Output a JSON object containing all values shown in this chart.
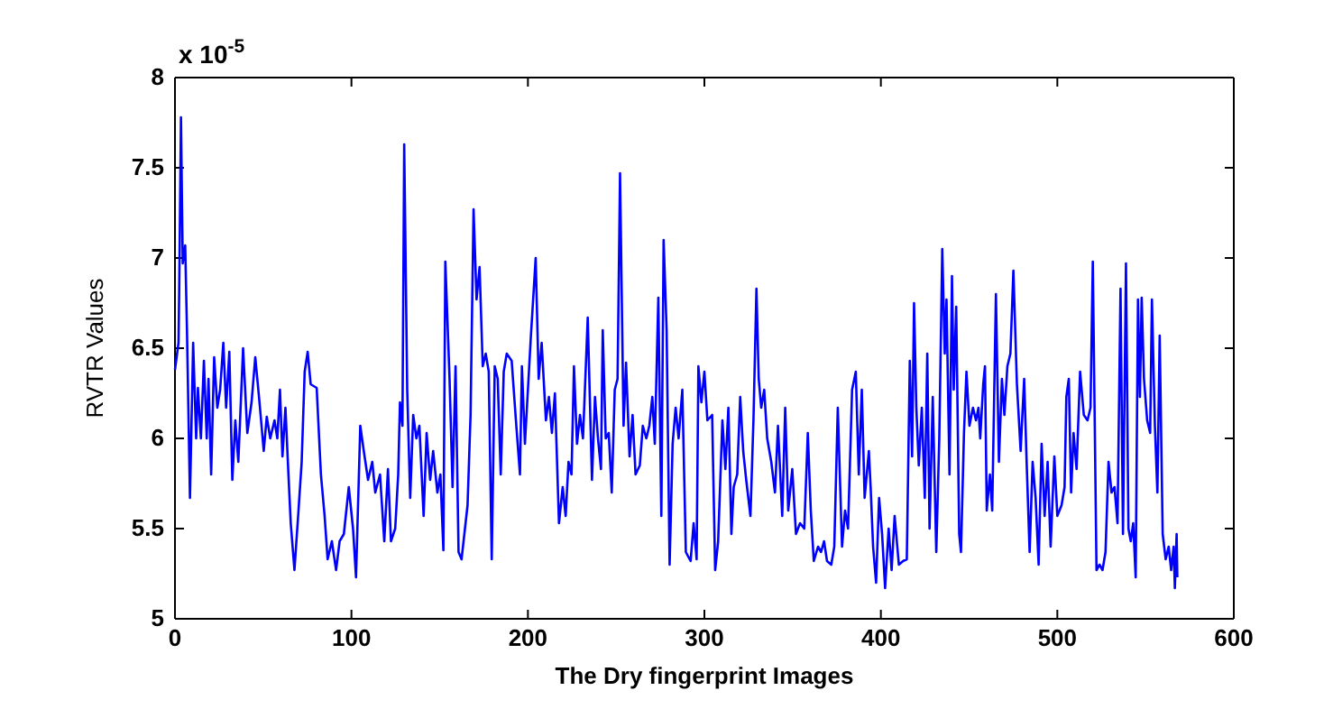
{
  "chart_data": {
    "type": "line",
    "xlabel": "The Dry fingerprint Images",
    "ylabel": "RVTR Values",
    "annotations": [
      "x 10$^{-5}$"
    ],
    "xlim": [
      0,
      600
    ],
    "ylim": [
      5,
      8
    ],
    "xticks": [
      0,
      100,
      200,
      300,
      400,
      500,
      600
    ],
    "yticks": [
      5,
      5.5,
      6,
      6.5,
      7,
      7.5,
      8
    ],
    "series": [
      {
        "color": "#0000ff",
        "x": [
          0,
          2,
          2.4,
          3.4,
          4.4,
          5.8,
          6.8,
          8.5,
          10.3,
          12,
          13,
          14.7,
          16.4,
          18,
          19,
          20.5,
          22.2,
          24,
          25.6,
          27.4,
          29,
          30.8,
          32.5,
          34.2,
          35.9,
          38.6,
          41,
          43.4,
          45.5,
          47.9,
          50.3,
          52,
          54,
          56.4,
          58,
          59.5,
          60.9,
          62.6,
          64.3,
          65.6,
          67.7,
          70,
          71.8,
          73.5,
          75.2,
          76.9,
          80.3,
          82.7,
          84.8,
          86.5,
          88.9,
          91.3,
          93.3,
          95.7,
          98.5,
          100.9,
          102.6,
          105,
          107,
          109.4,
          111.8,
          113.5,
          116.2,
          118.6,
          120.7,
          122.4,
          124.8,
          126.5,
          127.5,
          128.9,
          129.9,
          131.6,
          133.3,
          135,
          136.8,
          138.5,
          140.9,
          142.6,
          144.6,
          146.3,
          148.7,
          150.4,
          152.1,
          153.2,
          155.6,
          157.3,
          159,
          160.7,
          162.4,
          165.8,
          167.5,
          169.2,
          170.9,
          172.6,
          174.4,
          176.1,
          177.8,
          179.5,
          181.2,
          182.9,
          184.6,
          186.3,
          188,
          190.8,
          193.2,
          195.5,
          196.6,
          198.3,
          201.7,
          204.4,
          206.1,
          207.8,
          210.2,
          211.9,
          213.6,
          215.3,
          217.6,
          219.7,
          221.4,
          223,
          224.7,
          226.1,
          227.8,
          229.5,
          231.2,
          233.9,
          236.3,
          238,
          239.7,
          241.4,
          242.4,
          244.1,
          245.8,
          247.5,
          249.2,
          250.8,
          252.2,
          254.2,
          255.6,
          257.6,
          259.3,
          261,
          263.4,
          265.1,
          267.1,
          268.8,
          270.5,
          271.9,
          273.9,
          275.6,
          276.9,
          278.6,
          280.3,
          282,
          283.7,
          285.4,
          287.5,
          289.5,
          292.2,
          293.9,
          295.6,
          296.6,
          298.3,
          300,
          301.7,
          304.4,
          306.1,
          307.8,
          310.2,
          311.9,
          313.6,
          315.3,
          316.6,
          318.6,
          320.3,
          322,
          323.7,
          326.1,
          327.8,
          329.5,
          330.8,
          332.2,
          333.9,
          335.6,
          337.9,
          340,
          341.7,
          344.1,
          345.8,
          347.5,
          349.8,
          351.9,
          354.2,
          356.6,
          358.6,
          360.3,
          362,
          364.4,
          366.1,
          367.8,
          369.5,
          371.9,
          373.6,
          375.6,
          378,
          379.7,
          381.4,
          383.7,
          385.8,
          387.5,
          389.2,
          390.8,
          393.2,
          394.2,
          395.6,
          397.3,
          399,
          400.7,
          402.4,
          404.4,
          406.1,
          407.8,
          410.2,
          412.6,
          414.7,
          416.4,
          417.7,
          418.8,
          420.1,
          421.5,
          423.2,
          424.9,
          426.3,
          427.6,
          429.4,
          431.4,
          433.1,
          434.8,
          436.2,
          437.2,
          438.9,
          440.3,
          441.3,
          442.7,
          444.4,
          445.4,
          447.1,
          448.5,
          450.2,
          452.2,
          453.9,
          455.3,
          456.3,
          458,
          459,
          460,
          461.8,
          463.1,
          464.2,
          465.2,
          466.9,
          468.6,
          470,
          471.7,
          473.4,
          475.1,
          477.1,
          479.2,
          481.2,
          482.6,
          484.3,
          486,
          487.7,
          489.4,
          491.1,
          492.8,
          494.5,
          496.2,
          498.3,
          500,
          502.4,
          504.1,
          505.1,
          506.5,
          507.8,
          509.2,
          510.9,
          512.9,
          515,
          517.1,
          518.8,
          520.1,
          522.2,
          523.9,
          525.6,
          527.3,
          529,
          530.7,
          532.4,
          534.1,
          535.8,
          537.2,
          538.9,
          540.3,
          541.6,
          543,
          544.4,
          545.7,
          546.8,
          547.8,
          549.1,
          550.9,
          552.6,
          553.6,
          555.3,
          556.7,
          558,
          559.7,
          561.4,
          563.1,
          564.5,
          565.9,
          566.6,
          567.6,
          568
        ],
        "values": [
          6.38,
          6.53,
          6.82,
          7.78,
          6.97,
          7.07,
          6.6,
          5.67,
          6.53,
          6.0,
          6.28,
          6.0,
          6.43,
          6.0,
          6.33,
          5.8,
          6.45,
          6.17,
          6.27,
          6.53,
          6.17,
          6.48,
          5.77,
          6.1,
          5.87,
          6.5,
          6.03,
          6.2,
          6.45,
          6.2,
          5.93,
          6.12,
          6.0,
          6.1,
          6.0,
          6.27,
          5.9,
          6.17,
          5.8,
          5.53,
          5.27,
          5.6,
          5.87,
          6.37,
          6.48,
          6.3,
          6.28,
          5.8,
          5.57,
          5.33,
          5.43,
          5.27,
          5.43,
          5.47,
          5.73,
          5.5,
          5.23,
          6.07,
          5.93,
          5.77,
          5.87,
          5.7,
          5.8,
          5.43,
          5.83,
          5.43,
          5.5,
          5.8,
          6.2,
          6.07,
          7.63,
          6.27,
          5.67,
          6.13,
          6.0,
          6.07,
          5.57,
          6.03,
          5.77,
          5.93,
          5.7,
          5.8,
          5.38,
          6.98,
          6.33,
          5.73,
          6.4,
          5.37,
          5.33,
          5.63,
          6.13,
          7.27,
          6.77,
          6.95,
          6.4,
          6.47,
          6.37,
          5.33,
          6.4,
          6.33,
          5.8,
          6.37,
          6.47,
          6.43,
          6.1,
          5.8,
          6.4,
          5.97,
          6.57,
          7.0,
          6.33,
          6.53,
          6.1,
          6.23,
          6.03,
          6.25,
          5.53,
          5.73,
          5.57,
          5.87,
          5.8,
          6.4,
          5.97,
          6.13,
          6.0,
          6.67,
          5.77,
          6.23,
          6.0,
          5.83,
          6.6,
          6.0,
          6.03,
          5.7,
          6.27,
          6.33,
          7.47,
          6.07,
          6.42,
          5.9,
          6.13,
          5.8,
          5.85,
          6.07,
          6.0,
          6.07,
          6.23,
          5.97,
          6.78,
          5.57,
          7.1,
          6.6,
          5.3,
          5.97,
          6.17,
          6.0,
          6.27,
          5.37,
          5.32,
          5.53,
          5.33,
          6.4,
          6.2,
          6.37,
          6.1,
          6.13,
          5.27,
          5.43,
          6.1,
          5.83,
          6.17,
          5.47,
          5.73,
          5.8,
          6.23,
          5.93,
          5.77,
          5.57,
          6.1,
          6.83,
          6.33,
          6.17,
          6.27,
          6.0,
          5.87,
          5.7,
          6.07,
          5.57,
          6.17,
          5.6,
          5.83,
          5.47,
          5.53,
          5.5,
          6.03,
          5.6,
          5.32,
          5.4,
          5.37,
          5.43,
          5.32,
          5.3,
          5.4,
          6.17,
          5.4,
          5.6,
          5.5,
          6.27,
          6.37,
          5.8,
          6.27,
          5.67,
          5.93,
          5.73,
          5.4,
          5.2,
          5.67,
          5.47,
          5.17,
          5.5,
          5.27,
          5.57,
          5.3,
          5.32,
          5.33,
          6.43,
          5.9,
          6.75,
          6.17,
          5.85,
          6.17,
          5.67,
          6.47,
          5.5,
          6.23,
          5.37,
          6.0,
          7.05,
          6.47,
          6.77,
          5.8,
          6.9,
          6.27,
          6.73,
          5.47,
          5.37,
          6.03,
          6.37,
          6.07,
          6.17,
          6.1,
          6.17,
          6.0,
          6.3,
          6.4,
          5.6,
          5.8,
          5.6,
          6.23,
          6.8,
          5.87,
          6.33,
          6.13,
          6.4,
          6.47,
          6.93,
          6.3,
          5.93,
          6.33,
          5.87,
          5.37,
          5.87,
          5.67,
          5.3,
          5.97,
          5.57,
          5.87,
          5.4,
          5.9,
          5.57,
          5.63,
          5.73,
          6.23,
          6.33,
          5.7,
          6.03,
          5.83,
          6.37,
          6.13,
          6.1,
          6.17,
          6.98,
          5.27,
          5.3,
          5.27,
          5.37,
          5.87,
          5.7,
          5.73,
          5.53,
          6.83,
          5.47,
          6.97,
          5.5,
          5.43,
          5.53,
          5.23,
          6.77,
          6.23,
          6.78,
          6.33,
          6.1,
          6.03,
          6.77,
          6.07,
          5.7,
          6.57,
          5.47,
          5.33,
          5.4,
          5.27,
          5.4,
          5.17,
          5.47,
          5.23
        ]
      }
    ]
  }
}
